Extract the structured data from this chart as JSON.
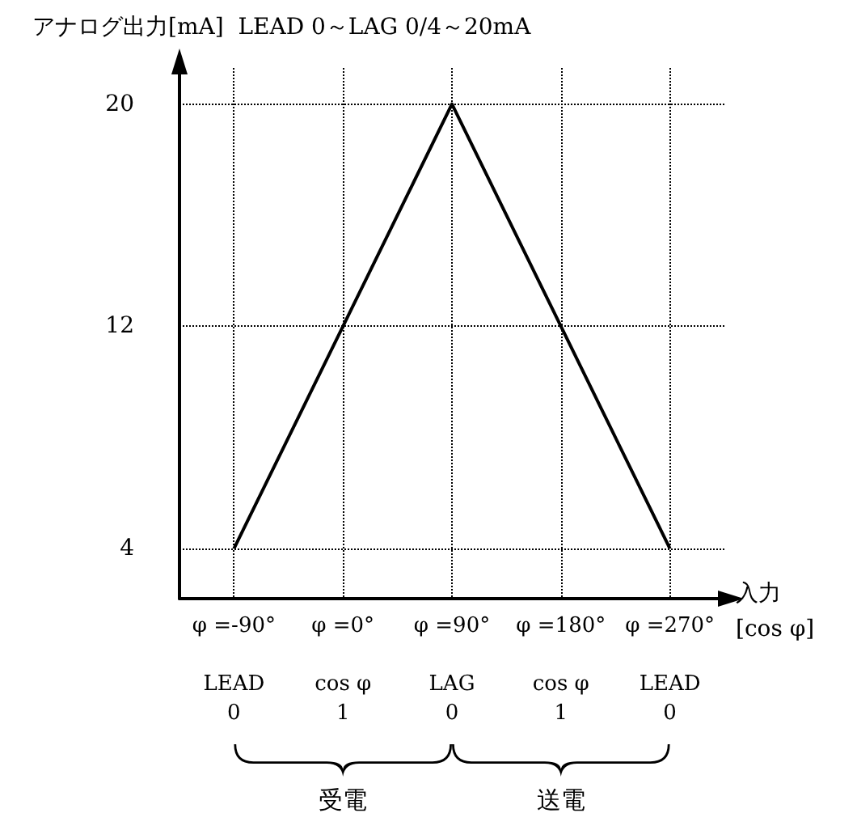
{
  "chart_data": {
    "type": "line",
    "ylabel": "アナログ出力[mA]  LEAD 0～LAG 0/4～20mA",
    "xlabel": "入力\n[cos φ]",
    "categories": [
      "φ =-90°\n\nLEAD\n0",
      "φ =0°\n\ncos φ\n1",
      "φ =90°\n\nLAG\n0",
      "φ =180°\n\ncos φ\n1",
      "φ =270°\n\nLEAD\n0"
    ],
    "series": [
      {
        "color": "#000000",
        "values": [
          4,
          12,
          20,
          12,
          4
        ]
      }
    ],
    "ylim": [
      2.2,
      21.3
    ],
    "yticks": [
      4,
      12,
      20
    ],
    "grid": true,
    "marker": "none",
    "line_style": "solid",
    "annotations": [
      {
        "text": "受電"
      },
      {
        "text": "送電"
      }
    ]
  }
}
